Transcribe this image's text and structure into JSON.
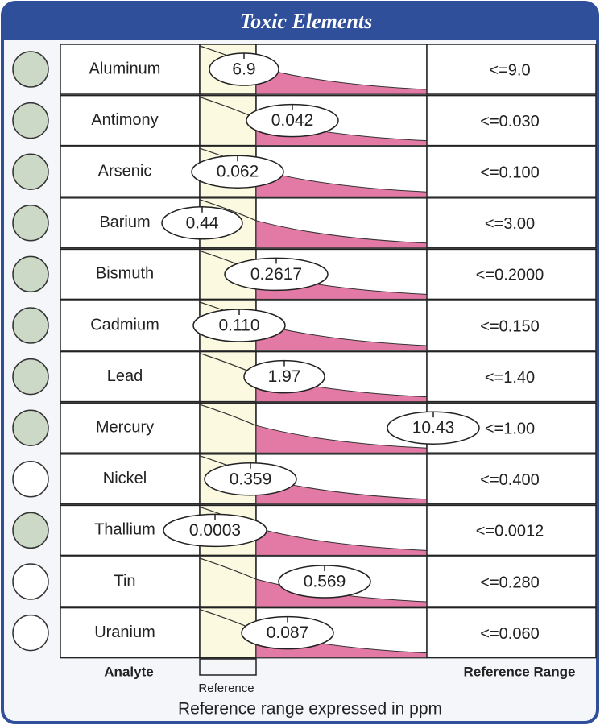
{
  "header": {
    "title": "Toxic Elements"
  },
  "table": {
    "rows": [
      {
        "analyte": "Aluminum",
        "result": "6.9",
        "reference": "<=9.0"
      },
      {
        "analyte": "Antimony",
        "result": "0.042",
        "reference": "<=0.030"
      },
      {
        "analyte": "Arsenic",
        "result": "0.062",
        "reference": "<=0.100"
      },
      {
        "analyte": "Barium",
        "result": "0.44",
        "reference": "<=3.00"
      },
      {
        "analyte": "Bismuth",
        "result": "0.2617",
        "reference": "<=0.2000"
      },
      {
        "analyte": "Cadmium",
        "result": "0.110",
        "reference": "<=0.150"
      },
      {
        "analyte": "Lead",
        "result": "1.97",
        "reference": "<=1.40"
      },
      {
        "analyte": "Mercury",
        "result": "10.43",
        "reference": "<=1.00"
      },
      {
        "analyte": "Nickel",
        "result": "0.359",
        "reference": "<=0.400"
      },
      {
        "analyte": "Thallium",
        "result": "0.0003",
        "reference": "<=0.0012"
      },
      {
        "analyte": "Tin",
        "result": "0.569",
        "reference": "<=0.280"
      },
      {
        "analyte": "Uranium",
        "result": "0.087",
        "reference": "<=0.060"
      }
    ]
  },
  "footer": {
    "analyte_label": "Analyte",
    "range_label": "Reference Range",
    "band_label": "Reference",
    "note": "Reference range expressed in ppm"
  }
}
